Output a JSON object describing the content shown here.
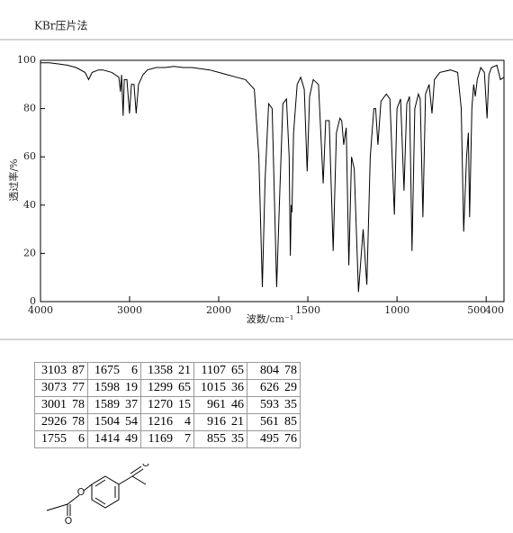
{
  "header": {
    "method": "KBr压片法"
  },
  "chart_data": {
    "type": "line",
    "xlabel": "波数/cm⁻¹",
    "ylabel": "透过率/%",
    "color": "#000000",
    "xlim": [
      4000,
      400
    ],
    "x_scale_change": 2000,
    "ylim": [
      0,
      100
    ],
    "xticks": [
      4000,
      3000,
      2000,
      1500,
      1000,
      500,
      400
    ],
    "yticks": [
      0,
      20,
      40,
      60,
      80,
      100
    ],
    "x": [
      4000,
      3900,
      3800,
      3700,
      3600,
      3500,
      3460,
      3420,
      3350,
      3300,
      3200,
      3120,
      3103,
      3090,
      3073,
      3060,
      3030,
      3001,
      2980,
      2950,
      2926,
      2900,
      2850,
      2800,
      2700,
      2600,
      2500,
      2400,
      2300,
      2200,
      2100,
      2000,
      1950,
      1900,
      1850,
      1800,
      1775,
      1755,
      1740,
      1720,
      1700,
      1675,
      1660,
      1640,
      1620,
      1605,
      1598,
      1593,
      1589,
      1580,
      1560,
      1540,
      1520,
      1504,
      1490,
      1470,
      1440,
      1414,
      1400,
      1380,
      1358,
      1340,
      1320,
      1310,
      1299,
      1285,
      1270,
      1255,
      1240,
      1216,
      1190,
      1169,
      1150,
      1130,
      1120,
      1107,
      1090,
      1060,
      1040,
      1015,
      1000,
      980,
      961,
      945,
      930,
      916,
      900,
      880,
      870,
      855,
      840,
      820,
      804,
      790,
      760,
      700,
      660,
      640,
      626,
      610,
      600,
      593,
      580,
      570,
      561,
      550,
      530,
      510,
      495,
      485,
      470,
      440,
      420,
      400
    ],
    "values": [
      99,
      99,
      98.5,
      98,
      97,
      95,
      92,
      95,
      96,
      96,
      95,
      93,
      87,
      94,
      77,
      92,
      92,
      78,
      90,
      90,
      78,
      90,
      94,
      96,
      97,
      97,
      97.5,
      97,
      97,
      96.5,
      96,
      95,
      94,
      93,
      92,
      88,
      60,
      6,
      50,
      82,
      80,
      6,
      40,
      82,
      84,
      60,
      19,
      40,
      37,
      70,
      90,
      93,
      88,
      54,
      85,
      92,
      90,
      49,
      75,
      75,
      21,
      70,
      76,
      75,
      65,
      72,
      15,
      60,
      55,
      4,
      30,
      7,
      60,
      80,
      80,
      65,
      83,
      86,
      84,
      36,
      80,
      84,
      46,
      82,
      85,
      21,
      80,
      86,
      84,
      35,
      86,
      90,
      78,
      92,
      95,
      96,
      95,
      80,
      29,
      60,
      70,
      35,
      80,
      90,
      85,
      92,
      97,
      95,
      76,
      94,
      97,
      98,
      92,
      93
    ]
  },
  "table": {
    "rows": [
      [
        3103,
        87,
        1675,
        6,
        1358,
        21,
        1107,
        65,
        804,
        78
      ],
      [
        3073,
        77,
        1598,
        19,
        1299,
        65,
        1015,
        36,
        626,
        29
      ],
      [
        3001,
        78,
        1589,
        37,
        1270,
        15,
        961,
        46,
        593,
        35
      ],
      [
        2926,
        78,
        1504,
        54,
        1216,
        4,
        916,
        21,
        561,
        85
      ],
      [
        1755,
        6,
        1414,
        49,
        1169,
        7,
        855,
        35,
        495,
        76
      ]
    ]
  },
  "structure": {
    "atoms": [
      "O",
      "O",
      "O"
    ]
  }
}
